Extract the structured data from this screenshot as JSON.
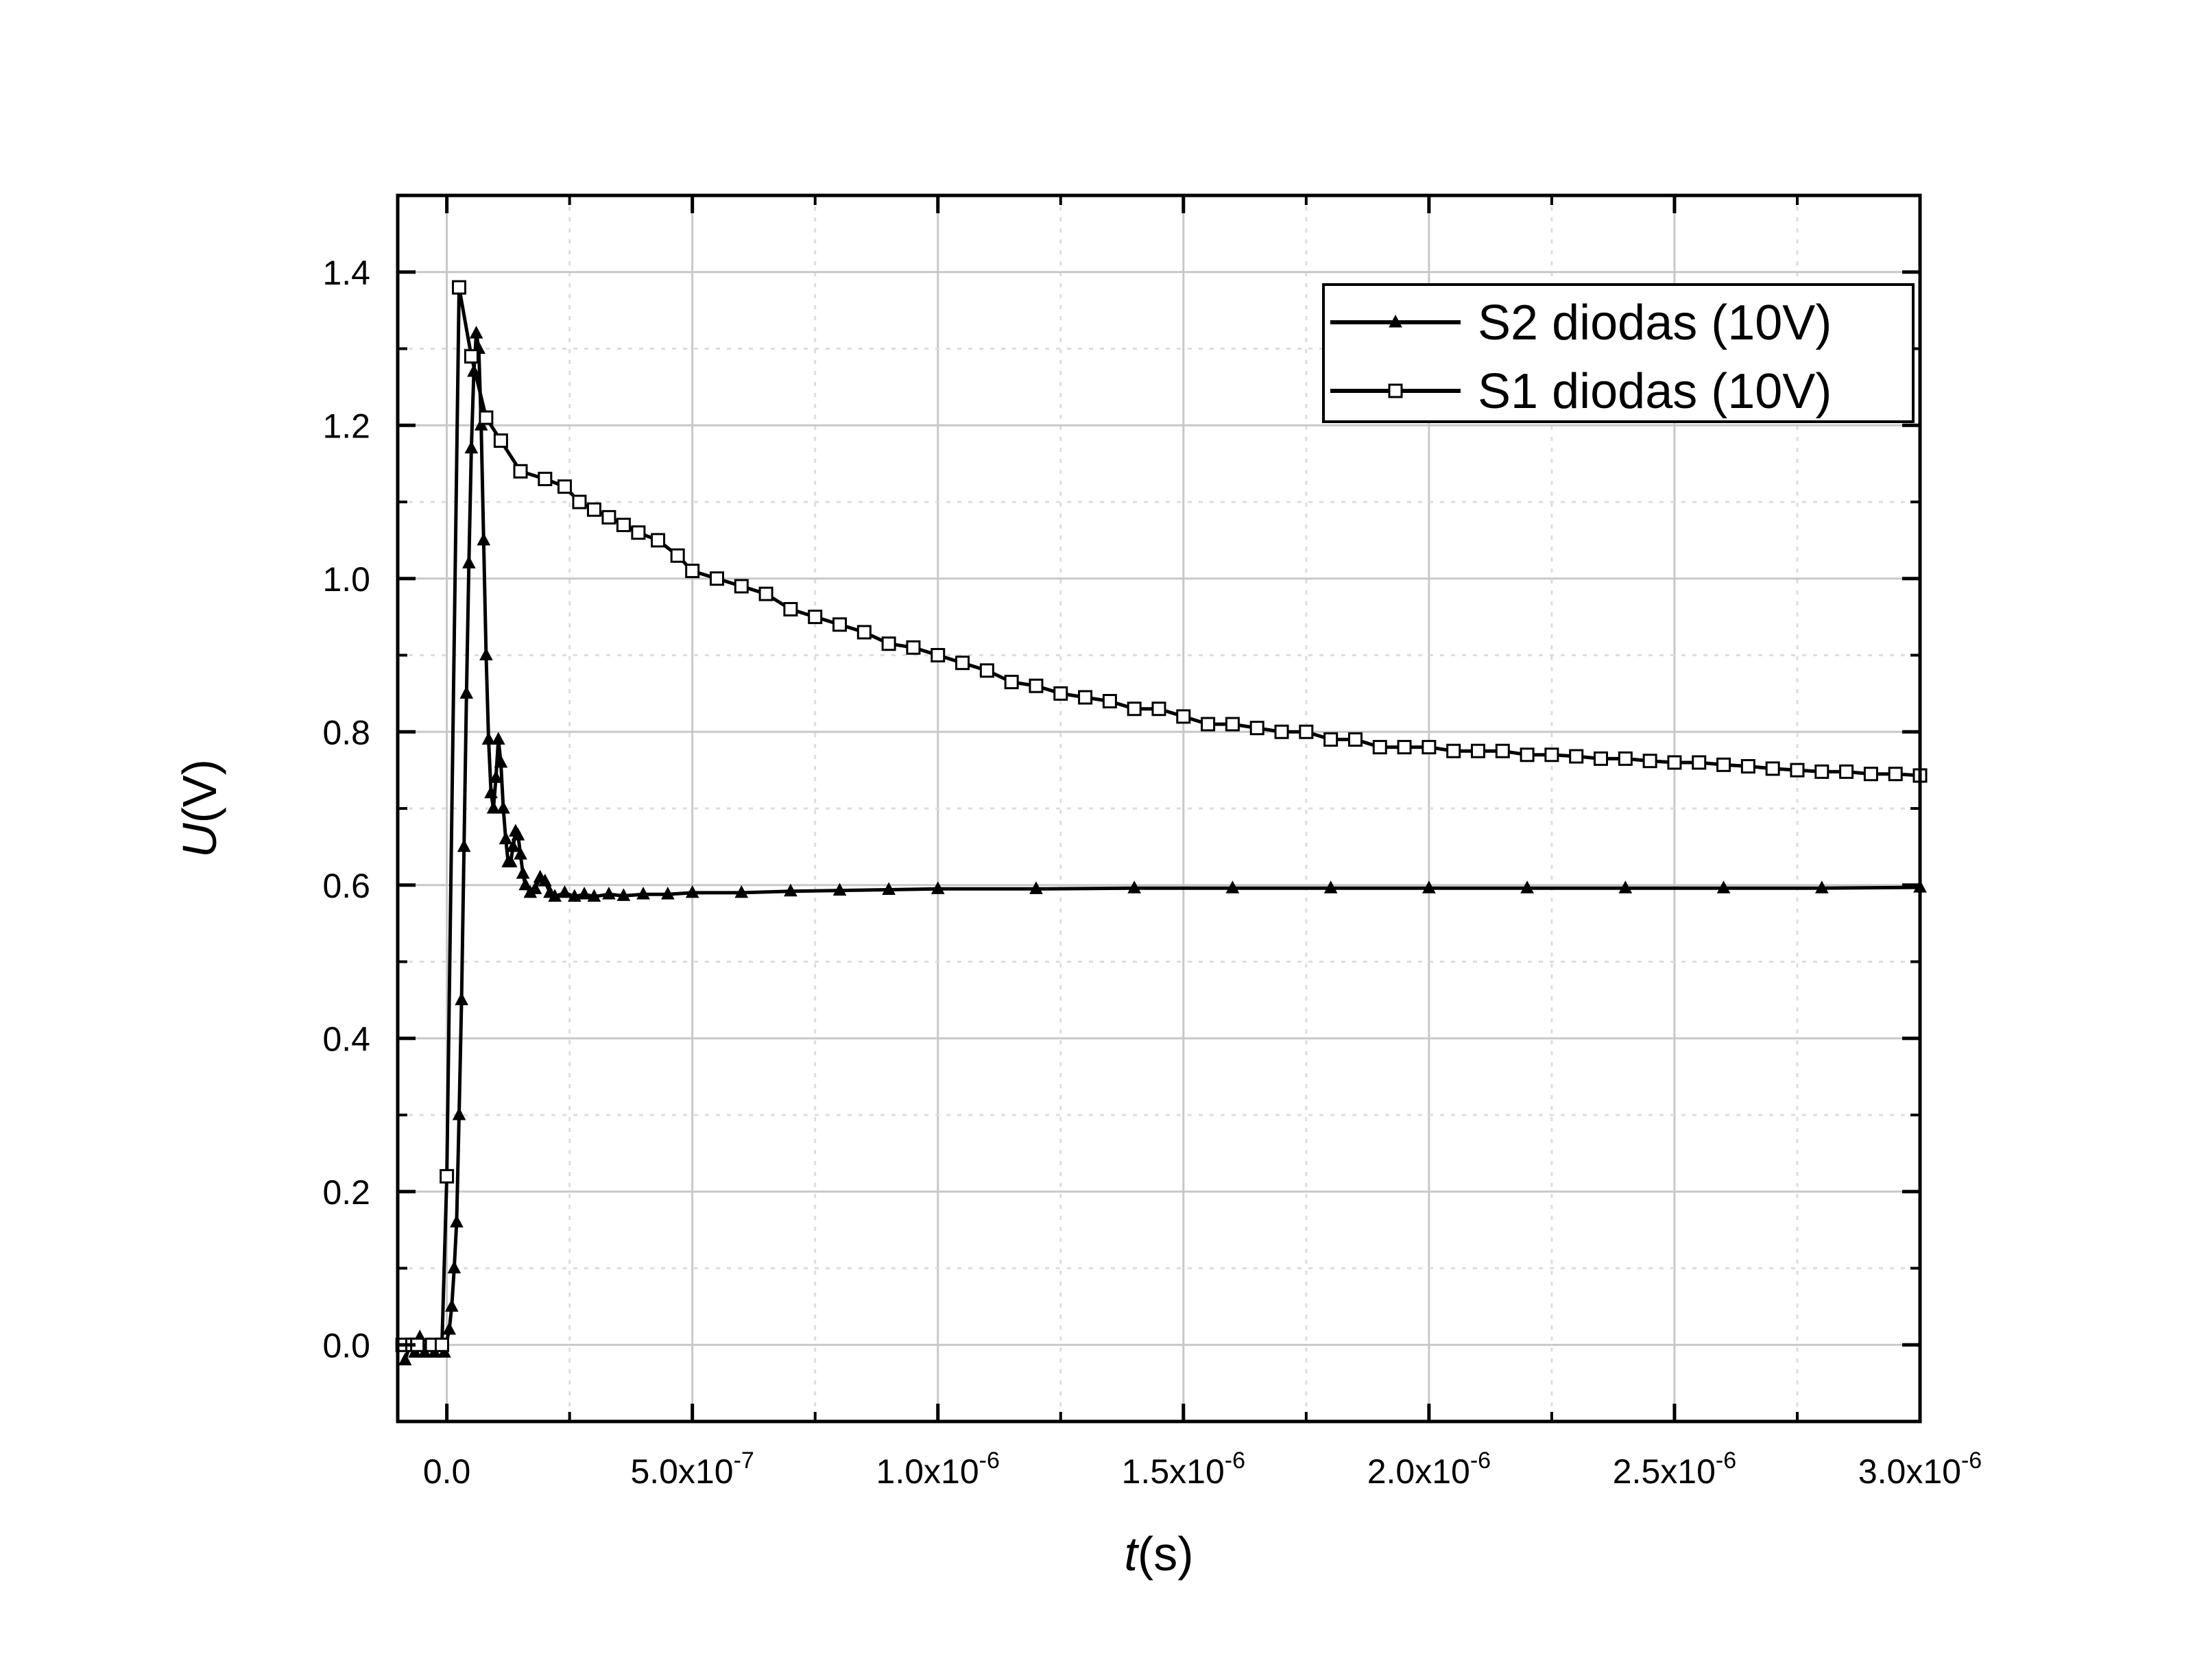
{
  "chart_data": {
    "type": "line",
    "title": "",
    "xlabel": {
      "italic": "t",
      "unit": "(s)"
    },
    "ylabel": {
      "italic": "U",
      "unit": "(V)"
    },
    "xlim": [
      -1e-07,
      3e-06
    ],
    "ylim": [
      -0.1,
      1.5
    ],
    "xticks": [
      {
        "value": 0,
        "base": "0.0",
        "exp": ""
      },
      {
        "value": 5e-07,
        "base": "5.0x10",
        "exp": "-7"
      },
      {
        "value": 1e-06,
        "base": "1.0x10",
        "exp": "-6"
      },
      {
        "value": 1.5e-06,
        "base": "1.5x10",
        "exp": "-6"
      },
      {
        "value": 2e-06,
        "base": "2.0x10",
        "exp": "-6"
      },
      {
        "value": 2.5e-06,
        "base": "2.5x10",
        "exp": "-6"
      },
      {
        "value": 3e-06,
        "base": "3.0x10",
        "exp": "-6"
      }
    ],
    "yticks": [
      {
        "value": 0.0,
        "label": "0.0"
      },
      {
        "value": 0.2,
        "label": "0.2"
      },
      {
        "value": 0.4,
        "label": "0.4"
      },
      {
        "value": 0.6,
        "label": "0.6"
      },
      {
        "value": 0.8,
        "label": "0.8"
      },
      {
        "value": 1.0,
        "label": "1.0"
      },
      {
        "value": 1.2,
        "label": "1.2"
      },
      {
        "value": 1.4,
        "label": "1.4"
      }
    ],
    "grid": true,
    "legend_position": "top-right",
    "series": [
      {
        "name": "S2 diodas (10V)",
        "marker": "triangle",
        "color": "#000000",
        "points": [
          [
            -8.5e-08,
            -0.02
          ],
          [
            -7.5e-08,
            0.0
          ],
          [
            -6.5e-08,
            -0.01
          ],
          [
            -5.5e-08,
            0.01
          ],
          [
            -4.5e-08,
            -0.01
          ],
          [
            -3.5e-08,
            0.0
          ],
          [
            -2.5e-08,
            -0.01
          ],
          [
            -1.5e-08,
            0.0
          ],
          [
            -5e-09,
            -0.01
          ],
          [
            5e-09,
            0.02
          ],
          [
            1e-08,
            0.05
          ],
          [
            1.5e-08,
            0.1
          ],
          [
            2e-08,
            0.16
          ],
          [
            2.5e-08,
            0.3
          ],
          [
            3e-08,
            0.45
          ],
          [
            3.5e-08,
            0.65
          ],
          [
            4e-08,
            0.85
          ],
          [
            4.5e-08,
            1.02
          ],
          [
            5e-08,
            1.17
          ],
          [
            5.5e-08,
            1.27
          ],
          [
            6e-08,
            1.32
          ],
          [
            6.5e-08,
            1.3
          ],
          [
            7e-08,
            1.2
          ],
          [
            7.5e-08,
            1.05
          ],
          [
            8e-08,
            0.9
          ],
          [
            8.5e-08,
            0.79
          ],
          [
            9e-08,
            0.72
          ],
          [
            9.5e-08,
            0.7
          ],
          [
            1e-07,
            0.74
          ],
          [
            1.05e-07,
            0.79
          ],
          [
            1.1e-07,
            0.76
          ],
          [
            1.15e-07,
            0.7
          ],
          [
            1.2e-07,
            0.66
          ],
          [
            1.25e-07,
            0.63
          ],
          [
            1.3e-07,
            0.63
          ],
          [
            1.35e-07,
            0.65
          ],
          [
            1.4e-07,
            0.67
          ],
          [
            1.45e-07,
            0.665
          ],
          [
            1.5e-07,
            0.64
          ],
          [
            1.55e-07,
            0.615
          ],
          [
            1.6e-07,
            0.6
          ],
          [
            1.7e-07,
            0.59
          ],
          [
            1.8e-07,
            0.595
          ],
          [
            1.9e-07,
            0.61
          ],
          [
            2e-07,
            0.605
          ],
          [
            2.1e-07,
            0.59
          ],
          [
            2.2e-07,
            0.585
          ],
          [
            2.4e-07,
            0.59
          ],
          [
            2.6e-07,
            0.585
          ],
          [
            2.8e-07,
            0.588
          ],
          [
            3e-07,
            0.585
          ],
          [
            3.3e-07,
            0.588
          ],
          [
            3.6e-07,
            0.586
          ],
          [
            4e-07,
            0.588
          ],
          [
            4.5e-07,
            0.588
          ],
          [
            5e-07,
            0.59
          ],
          [
            6e-07,
            0.59
          ],
          [
            7e-07,
            0.592
          ],
          [
            8e-07,
            0.593
          ],
          [
            9e-07,
            0.594
          ],
          [
            1e-06,
            0.595
          ],
          [
            1.2e-06,
            0.595
          ],
          [
            1.4e-06,
            0.596
          ],
          [
            1.6e-06,
            0.596
          ],
          [
            1.8e-06,
            0.596
          ],
          [
            2e-06,
            0.596
          ],
          [
            2.2e-06,
            0.596
          ],
          [
            2.4e-06,
            0.596
          ],
          [
            2.6e-06,
            0.596
          ],
          [
            2.8e-06,
            0.596
          ],
          [
            3e-06,
            0.597
          ]
        ]
      },
      {
        "name": "S1 diodas (10V)",
        "marker": "square",
        "color": "#000000",
        "points": [
          [
            -9e-08,
            0.0
          ],
          [
            -7e-08,
            0.0
          ],
          [
            -6e-08,
            0.0
          ],
          [
            -3e-08,
            0.0
          ],
          [
            -1e-08,
            0.0
          ],
          [
            0,
            0.22
          ],
          [
            2.5e-08,
            1.38
          ],
          [
            5e-08,
            1.29
          ],
          [
            8e-08,
            1.21
          ],
          [
            1.1e-07,
            1.18
          ],
          [
            1.5e-07,
            1.14
          ],
          [
            2e-07,
            1.13
          ],
          [
            2.4e-07,
            1.12
          ],
          [
            2.7e-07,
            1.1
          ],
          [
            3e-07,
            1.09
          ],
          [
            3.3e-07,
            1.08
          ],
          [
            3.6e-07,
            1.07
          ],
          [
            3.9e-07,
            1.06
          ],
          [
            4.3e-07,
            1.05
          ],
          [
            4.7e-07,
            1.03
          ],
          [
            5e-07,
            1.01
          ],
          [
            5.5e-07,
            1.0
          ],
          [
            6e-07,
            0.99
          ],
          [
            6.5e-07,
            0.98
          ],
          [
            7e-07,
            0.96
          ],
          [
            7.5e-07,
            0.95
          ],
          [
            8e-07,
            0.94
          ],
          [
            8.5e-07,
            0.93
          ],
          [
            9e-07,
            0.915
          ],
          [
            9.5e-07,
            0.91
          ],
          [
            1e-06,
            0.9
          ],
          [
            1.05e-06,
            0.89
          ],
          [
            1.1e-06,
            0.88
          ],
          [
            1.15e-06,
            0.865
          ],
          [
            1.2e-06,
            0.86
          ],
          [
            1.25e-06,
            0.85
          ],
          [
            1.3e-06,
            0.845
          ],
          [
            1.35e-06,
            0.84
          ],
          [
            1.4e-06,
            0.83
          ],
          [
            1.45e-06,
            0.83
          ],
          [
            1.5e-06,
            0.82
          ],
          [
            1.55e-06,
            0.81
          ],
          [
            1.6e-06,
            0.81
          ],
          [
            1.65e-06,
            0.805
          ],
          [
            1.7e-06,
            0.8
          ],
          [
            1.75e-06,
            0.8
          ],
          [
            1.8e-06,
            0.79
          ],
          [
            1.85e-06,
            0.79
          ],
          [
            1.9e-06,
            0.78
          ],
          [
            1.95e-06,
            0.78
          ],
          [
            2e-06,
            0.78
          ],
          [
            2.05e-06,
            0.775
          ],
          [
            2.1e-06,
            0.775
          ],
          [
            2.15e-06,
            0.775
          ],
          [
            2.2e-06,
            0.77
          ],
          [
            2.25e-06,
            0.77
          ],
          [
            2.3e-06,
            0.768
          ],
          [
            2.35e-06,
            0.765
          ],
          [
            2.4e-06,
            0.765
          ],
          [
            2.45e-06,
            0.762
          ],
          [
            2.5e-06,
            0.76
          ],
          [
            2.55e-06,
            0.76
          ],
          [
            2.6e-06,
            0.757
          ],
          [
            2.65e-06,
            0.755
          ],
          [
            2.7e-06,
            0.752
          ],
          [
            2.75e-06,
            0.75
          ],
          [
            2.8e-06,
            0.748
          ],
          [
            2.85e-06,
            0.748
          ],
          [
            2.9e-06,
            0.745
          ],
          [
            2.95e-06,
            0.745
          ],
          [
            3e-06,
            0.743
          ]
        ]
      }
    ]
  }
}
